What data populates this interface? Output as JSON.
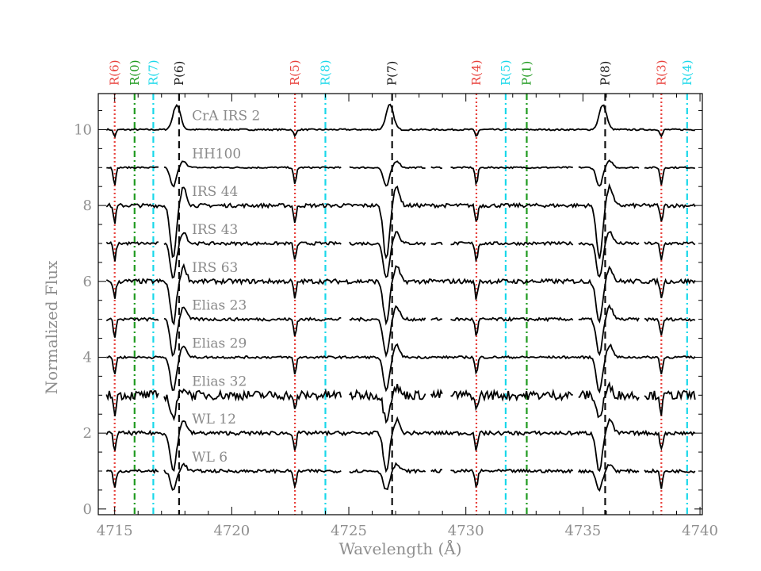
{
  "chart_data": {
    "type": "line",
    "xlabel": "Wavelength (Å)",
    "ylabel": "Normalized Flux",
    "xlim": [
      4714.3,
      4740.1
    ],
    "ylim": [
      -0.15,
      10.95
    ],
    "x_ticks": [
      4715,
      4720,
      4725,
      4730,
      4735,
      4740
    ],
    "y_ticks": [
      0,
      2,
      4,
      6,
      8,
      10
    ],
    "grid": false,
    "colors": {
      "R": "#e8413c",
      "P": "#111111",
      "cyanR": "#19d8ea",
      "greenPR": "#1f9a1f",
      "trace": "#000000"
    },
    "line_markers": [
      {
        "label": "R(6)",
        "x": 4715.0,
        "family": "R",
        "style": "dotted"
      },
      {
        "label": "R(0)",
        "x": 4715.85,
        "family": "greenPR",
        "style": "dashdot"
      },
      {
        "label": "R(7)",
        "x": 4716.65,
        "family": "cyanR",
        "style": "dashdot"
      },
      {
        "label": "P(6)",
        "x": 4717.75,
        "family": "P",
        "style": "dashed"
      },
      {
        "label": "R(5)",
        "x": 4722.7,
        "family": "R",
        "style": "dotted"
      },
      {
        "label": "R(8)",
        "x": 4724.0,
        "family": "cyanR",
        "style": "dashdot"
      },
      {
        "label": "P(7)",
        "x": 4726.85,
        "family": "P",
        "style": "dashed"
      },
      {
        "label": "R(4)",
        "x": 4730.45,
        "family": "R",
        "style": "dotted"
      },
      {
        "label": "R(5)",
        "x": 4731.7,
        "family": "cyanR",
        "style": "dashdot"
      },
      {
        "label": "P(1)",
        "x": 4732.6,
        "family": "greenPR",
        "style": "dashdot"
      },
      {
        "label": "P(8)",
        "x": 4735.95,
        "family": "P",
        "style": "dashed"
      },
      {
        "label": "R(3)",
        "x": 4738.35,
        "family": "R",
        "style": "dotted"
      },
      {
        "label": "R(4)",
        "x": 4739.45,
        "family": "cyanR",
        "style": "dashdot"
      }
    ],
    "series": [
      {
        "name": "CrA IRS 2",
        "offset": 10,
        "noise": 0.02,
        "profile": "emission",
        "depth": 0.65
      },
      {
        "name": "HH100",
        "offset": 9,
        "noise": 0.02,
        "profile": "pcygni",
        "depth": 0.5
      },
      {
        "name": "IRS 44",
        "offset": 8,
        "noise": 0.05,
        "profile": "pcygni",
        "depth": 1.4
      },
      {
        "name": "IRS 43",
        "offset": 7,
        "noise": 0.04,
        "profile": "pcygni",
        "depth": 0.9
      },
      {
        "name": "IRS 63",
        "offset": 6,
        "noise": 0.06,
        "profile": "pcygni",
        "depth": 1.1
      },
      {
        "name": "Elias 23",
        "offset": 5,
        "noise": 0.04,
        "profile": "pcygni",
        "depth": 0.95
      },
      {
        "name": "Elias 29",
        "offset": 4,
        "noise": 0.03,
        "profile": "pcygni",
        "depth": 0.9
      },
      {
        "name": "Elias 32",
        "offset": 3,
        "noise": 0.12,
        "profile": "pcygni",
        "depth": 0.6
      },
      {
        "name": "WL 12",
        "offset": 2,
        "noise": 0.05,
        "profile": "pcygni",
        "depth": 1.0
      },
      {
        "name": "WL 6",
        "offset": 1,
        "noise": 0.04,
        "profile": "pcygni",
        "depth": 0.5
      }
    ]
  }
}
